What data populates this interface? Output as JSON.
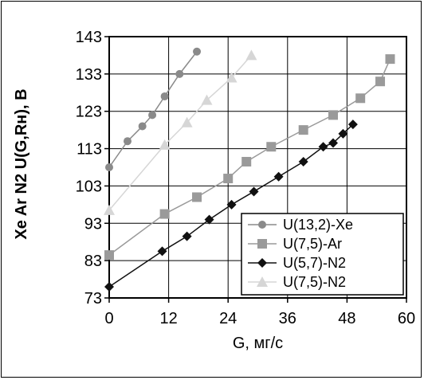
{
  "chart_data": {
    "type": "line",
    "xlabel": "G, мг/с",
    "ylabel": "Xe  Ar  N2  U(G,Rн), В",
    "xlim": [
      0,
      60
    ],
    "ylim": [
      73,
      143
    ],
    "x_ticks": [
      "0",
      "12",
      "24",
      "36",
      "48",
      "60"
    ],
    "y_ticks": [
      "73",
      "83",
      "93",
      "103",
      "113",
      "123",
      "133",
      "143"
    ],
    "grid": true,
    "legend_position": "bottom-right",
    "series": [
      {
        "name": "U(13,2)-Xe",
        "color": "#8a8a8a",
        "marker": "circle",
        "x": [
          0,
          3.7,
          6.7,
          8.7,
          11.2,
          14.2,
          17.7
        ],
        "y": [
          108,
          115,
          119,
          122,
          127,
          133,
          139
        ]
      },
      {
        "name": "U(7,5)-Ar",
        "color": "#9a9a9a",
        "marker": "square",
        "x": [
          0,
          11.2,
          17.7,
          24,
          27.7,
          32.7,
          39.2,
          45.2,
          50.7,
          54.7,
          56.7
        ],
        "y": [
          84.5,
          95.5,
          100,
          105,
          109.5,
          113.5,
          118,
          122,
          126.5,
          131,
          137
        ]
      },
      {
        "name": "U(5,7)-N2",
        "color": "#111111",
        "marker": "diamond",
        "x": [
          0,
          10.7,
          15.7,
          20.2,
          24.7,
          29.2,
          34.2,
          39.2,
          43.2,
          45.2,
          47.2,
          49.2
        ],
        "y": [
          76,
          85.5,
          89.5,
          94,
          98,
          101.5,
          105.5,
          109.5,
          113.5,
          114.5,
          117,
          119.5
        ]
      },
      {
        "name": "U(7,5)-N2",
        "color": "#d6d6d6",
        "marker": "triangle",
        "x": [
          0,
          11.2,
          15.7,
          19.7,
          24.7,
          28.7
        ],
        "y": [
          96.5,
          114,
          120,
          126,
          132,
          138
        ]
      }
    ]
  }
}
